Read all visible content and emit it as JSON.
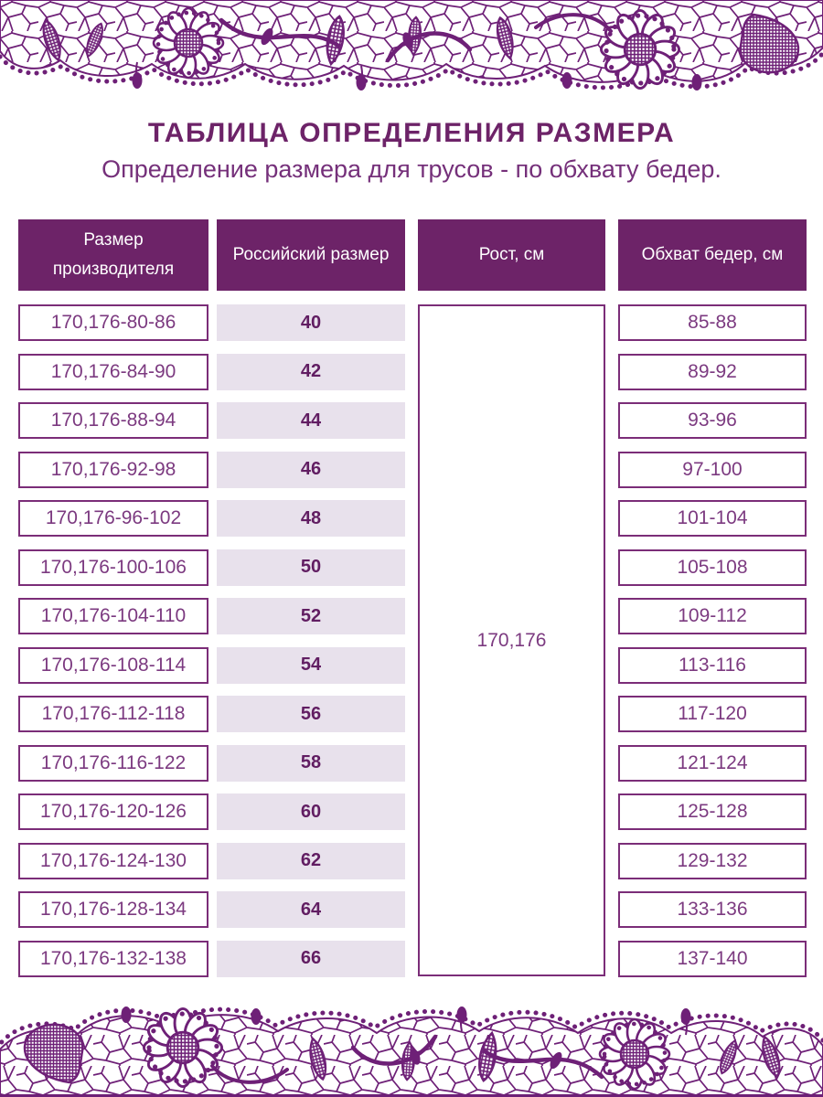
{
  "title": "ТАБЛИЦА ОПРЕДЕЛЕНИЯ РАЗМЕРА",
  "subtitle": "Определение размера для трусов - по обхвату бедер.",
  "colors": {
    "header_bg": "#6d2368",
    "lace_purple": "#6e2077",
    "cell_border": "#7b2d78",
    "cell_text": "#7c3a80",
    "row_fill": "#e8e1ec",
    "bold_text": "#611d62"
  },
  "table": {
    "headers": [
      "Размер производителя",
      "Российский размер",
      "Рост, см",
      "Обхват бедер, см"
    ],
    "height_value": "170,176",
    "rows": [
      {
        "manufacturer": "170,176-80-86",
        "ru_size": "40",
        "hips": "85-88"
      },
      {
        "manufacturer": "170,176-84-90",
        "ru_size": "42",
        "hips": "89-92"
      },
      {
        "manufacturer": "170,176-88-94",
        "ru_size": "44",
        "hips": "93-96"
      },
      {
        "manufacturer": "170,176-92-98",
        "ru_size": "46",
        "hips": "97-100"
      },
      {
        "manufacturer": "170,176-96-102",
        "ru_size": "48",
        "hips": "101-104"
      },
      {
        "manufacturer": "170,176-100-106",
        "ru_size": "50",
        "hips": "105-108"
      },
      {
        "manufacturer": "170,176-104-110",
        "ru_size": "52",
        "hips": "109-112"
      },
      {
        "manufacturer": "170,176-108-114",
        "ru_size": "54",
        "hips": "113-116"
      },
      {
        "manufacturer": "170,176-112-118",
        "ru_size": "56",
        "hips": "117-120"
      },
      {
        "manufacturer": "170,176-116-122",
        "ru_size": "58",
        "hips": "121-124"
      },
      {
        "manufacturer": "170,176-120-126",
        "ru_size": "60",
        "hips": "125-128"
      },
      {
        "manufacturer": "170,176-124-130",
        "ru_size": "62",
        "hips": "129-132"
      },
      {
        "manufacturer": "170,176-128-134",
        "ru_size": "64",
        "hips": "133-136"
      },
      {
        "manufacturer": "170,176-132-138",
        "ru_size": "66",
        "hips": "137-140"
      }
    ]
  }
}
